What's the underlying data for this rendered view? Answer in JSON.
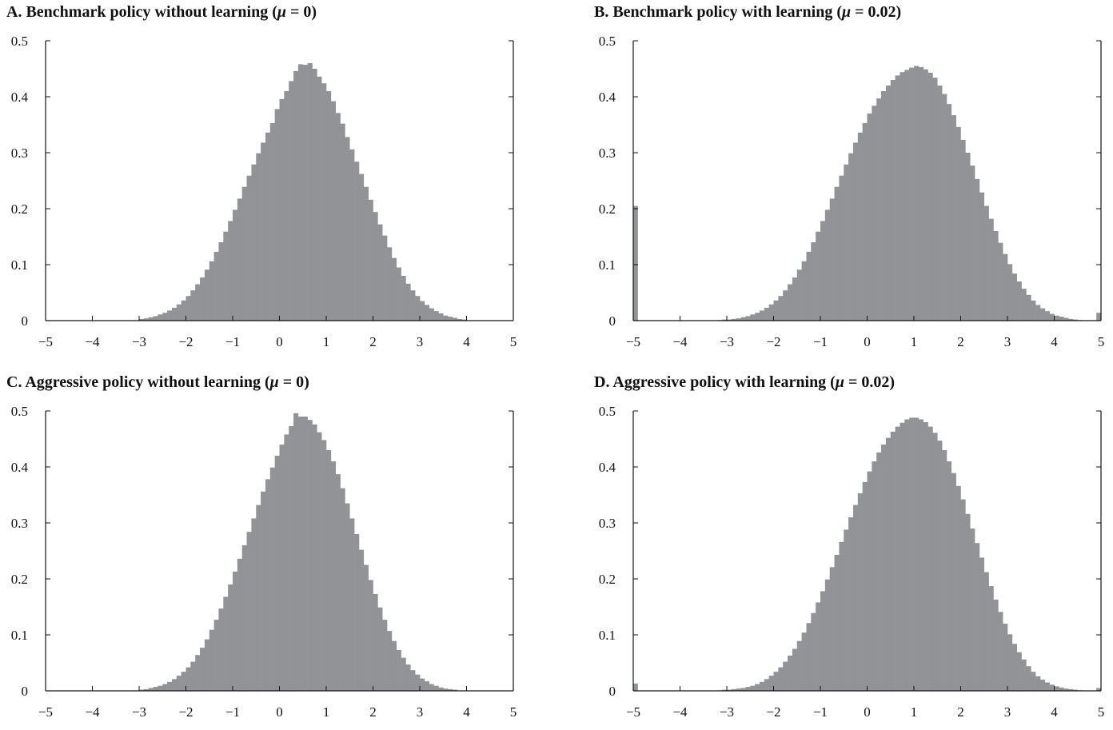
{
  "colors": {
    "bar": "#929397",
    "axis": "#111111"
  },
  "chart_data": [
    {
      "type": "bar",
      "id": "A",
      "title": "A.  Benchmark policy without learning (",
      "title_mu": "μ",
      "title_tail": " = 0)",
      "xlim": [
        -5,
        5
      ],
      "ylim": [
        0,
        0.5
      ],
      "xticks": [
        "−5",
        "−4",
        "−3",
        "−2",
        "−1",
        "0",
        "1",
        "2",
        "3",
        "4",
        "5"
      ],
      "yticks": [
        "0",
        "0.1",
        "0.2",
        "0.3",
        "0.4",
        "0.5"
      ],
      "bin_width": 0.1,
      "bin_start": -3.0,
      "values": [
        0.003,
        0.004,
        0.006,
        0.008,
        0.011,
        0.014,
        0.018,
        0.023,
        0.029,
        0.036,
        0.044,
        0.054,
        0.065,
        0.077,
        0.091,
        0.106,
        0.123,
        0.14,
        0.159,
        0.178,
        0.198,
        0.218,
        0.239,
        0.259,
        0.279,
        0.299,
        0.318,
        0.336,
        0.353,
        0.378,
        0.396,
        0.41,
        0.428,
        0.446,
        0.458,
        0.457,
        0.46,
        0.45,
        0.436,
        0.424,
        0.41,
        0.392,
        0.371,
        0.352,
        0.328,
        0.306,
        0.284,
        0.262,
        0.239,
        0.216,
        0.194,
        0.172,
        0.152,
        0.131,
        0.112,
        0.095,
        0.08,
        0.066,
        0.054,
        0.044,
        0.035,
        0.028,
        0.022,
        0.017,
        0.013,
        0.009,
        0.007,
        0.005,
        0.003,
        0.002
      ]
    },
    {
      "type": "bar",
      "id": "B",
      "title": "B.  Benchmark policy with learning (",
      "title_mu": "μ",
      "title_tail": " = 0.02)",
      "xlim": [
        -5,
        5
      ],
      "ylim": [
        0,
        0.5
      ],
      "xticks": [
        "−5",
        "−4",
        "−3",
        "−2",
        "−1",
        "0",
        "1",
        "2",
        "3",
        "4",
        "5"
      ],
      "yticks": [
        "0",
        "0.1",
        "0.2",
        "0.3",
        "0.4",
        "0.5"
      ],
      "bin_width": 0.1,
      "bin_start": -3.2,
      "values": [
        0.001,
        0.002,
        0.002,
        0.003,
        0.004,
        0.006,
        0.008,
        0.011,
        0.014,
        0.018,
        0.023,
        0.029,
        0.036,
        0.044,
        0.054,
        0.065,
        0.077,
        0.091,
        0.106,
        0.123,
        0.14,
        0.159,
        0.178,
        0.198,
        0.218,
        0.239,
        0.259,
        0.279,
        0.299,
        0.318,
        0.336,
        0.353,
        0.37,
        0.384,
        0.397,
        0.41,
        0.42,
        0.43,
        0.438,
        0.444,
        0.448,
        0.452,
        0.455,
        0.453,
        0.449,
        0.443,
        0.434,
        0.42,
        0.405,
        0.387,
        0.367,
        0.346,
        0.323,
        0.3,
        0.277,
        0.253,
        0.229,
        0.205,
        0.182,
        0.16,
        0.139,
        0.119,
        0.101,
        0.084,
        0.07,
        0.057,
        0.046,
        0.036,
        0.028,
        0.022,
        0.017,
        0.012,
        0.009,
        0.007,
        0.005,
        0.003,
        0.002,
        0.001
      ],
      "edge_bins": [
        {
          "x": -5.0,
          "value": 0.205
        },
        {
          "x": 4.9,
          "value": 0.014
        }
      ]
    },
    {
      "type": "bar",
      "id": "C",
      "title": "C.  Aggressive policy without learning (",
      "title_mu": "μ",
      "title_tail": " = 0)",
      "xlim": [
        -5,
        5
      ],
      "ylim": [
        0,
        0.5
      ],
      "xticks": [
        "−5",
        "−4",
        "−3",
        "−2",
        "−1",
        "0",
        "1",
        "2",
        "3",
        "4",
        "5"
      ],
      "yticks": [
        "0",
        "0.1",
        "0.2",
        "0.3",
        "0.4",
        "0.5"
      ],
      "bin_width": 0.1,
      "bin_start": -3.0,
      "values": [
        0.002,
        0.003,
        0.005,
        0.007,
        0.009,
        0.012,
        0.016,
        0.021,
        0.027,
        0.034,
        0.042,
        0.052,
        0.064,
        0.077,
        0.092,
        0.109,
        0.127,
        0.147,
        0.168,
        0.19,
        0.213,
        0.236,
        0.26,
        0.284,
        0.308,
        0.332,
        0.356,
        0.378,
        0.399,
        0.42,
        0.44,
        0.458,
        0.473,
        0.496,
        0.49,
        0.49,
        0.484,
        0.476,
        0.462,
        0.448,
        0.43,
        0.41,
        0.387,
        0.362,
        0.335,
        0.308,
        0.28,
        0.252,
        0.225,
        0.198,
        0.173,
        0.149,
        0.127,
        0.107,
        0.089,
        0.073,
        0.059,
        0.047,
        0.037,
        0.029,
        0.022,
        0.017,
        0.012,
        0.009,
        0.006,
        0.004,
        0.003,
        0.002
      ]
    },
    {
      "type": "bar",
      "id": "D",
      "title": "D.  Aggressive policy with learning (",
      "title_mu": "μ",
      "title_tail": " = 0.02)",
      "xlim": [
        -5,
        5
      ],
      "ylim": [
        0,
        0.5
      ],
      "xticks": [
        "−5",
        "−4",
        "−3",
        "−2",
        "−1",
        "0",
        "1",
        "2",
        "3",
        "4",
        "5"
      ],
      "yticks": [
        "0",
        "0.1",
        "0.2",
        "0.3",
        "0.4",
        "0.5"
      ],
      "bin_width": 0.1,
      "bin_start": -3.2,
      "values": [
        0.001,
        0.002,
        0.002,
        0.003,
        0.004,
        0.005,
        0.007,
        0.009,
        0.012,
        0.016,
        0.021,
        0.027,
        0.034,
        0.042,
        0.052,
        0.063,
        0.075,
        0.089,
        0.104,
        0.121,
        0.139,
        0.158,
        0.178,
        0.199,
        0.221,
        0.243,
        0.266,
        0.288,
        0.31,
        0.332,
        0.353,
        0.373,
        0.392,
        0.41,
        0.426,
        0.44,
        0.452,
        0.463,
        0.472,
        0.479,
        0.485,
        0.488,
        0.488,
        0.485,
        0.48,
        0.472,
        0.461,
        0.447,
        0.43,
        0.41,
        0.389,
        0.366,
        0.342,
        0.316,
        0.29,
        0.264,
        0.238,
        0.212,
        0.187,
        0.163,
        0.141,
        0.12,
        0.101,
        0.084,
        0.069,
        0.056,
        0.044,
        0.034,
        0.026,
        0.02,
        0.015,
        0.011,
        0.008,
        0.006,
        0.004,
        0.003,
        0.002,
        0.001
      ],
      "edge_bins": [
        {
          "x": -5.0,
          "value": 0.013
        },
        {
          "x": 4.9,
          "value": 0.005
        }
      ]
    }
  ]
}
